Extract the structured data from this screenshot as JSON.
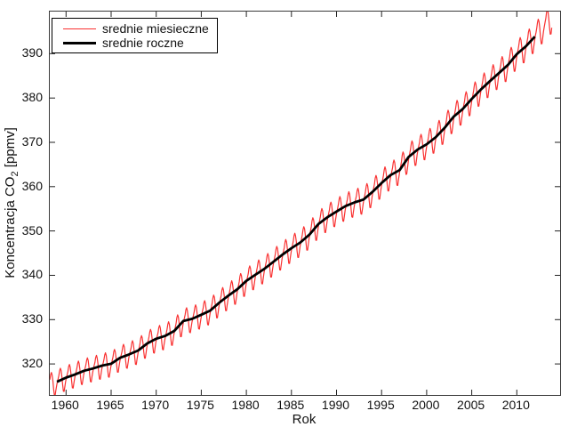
{
  "chart_data": {
    "type": "line",
    "title": "",
    "xlabel": "Rok",
    "ylabel": "Koncentracja CO2 [ppmv]",
    "ylabel_parts": {
      "prefix": "Koncentracja CO",
      "sub": "2",
      "suffix": " [ppmv]"
    },
    "xlim": [
      1958.2,
      2014.8
    ],
    "ylim": [
      313.0,
      399.5
    ],
    "xticks": [
      1960,
      1965,
      1970,
      1975,
      1980,
      1985,
      1990,
      1995,
      2000,
      2005,
      2010
    ],
    "yticks": [
      320,
      330,
      340,
      350,
      360,
      370,
      380,
      390
    ],
    "grid": false,
    "legend_position": "top-left",
    "axis_color": "#3a3a3a",
    "tick_color": "#222222",
    "background": "#ffffff",
    "series": [
      {
        "name": "srednie miesieczne",
        "kind": "monthly-means",
        "color": "#f93131",
        "line_width": 1.2,
        "first_month": [
          1958,
          3
        ],
        "last_month": [
          2013,
          11
        ],
        "seasonal_offsets_ppmv": [
          -0.05,
          0.65,
          1.4,
          2.55,
          3.05,
          2.35,
          0.75,
          -1.45,
          -3.15,
          -3.3,
          -2.1,
          -0.95
        ],
        "amplitude_scale": [
          0.88,
          1.02
        ]
      },
      {
        "name": "srednie roczne",
        "kind": "annual-means",
        "color": "#000000",
        "line_width": 2.8,
        "years": [
          1959,
          1960,
          1961,
          1962,
          1963,
          1964,
          1965,
          1966,
          1967,
          1968,
          1969,
          1970,
          1971,
          1972,
          1973,
          1974,
          1975,
          1976,
          1977,
          1978,
          1979,
          1980,
          1981,
          1982,
          1983,
          1984,
          1985,
          1986,
          1987,
          1988,
          1989,
          1990,
          1991,
          1992,
          1993,
          1994,
          1995,
          1996,
          1997,
          1998,
          1999,
          2000,
          2001,
          2002,
          2003,
          2004,
          2005,
          2006,
          2007,
          2008,
          2009,
          2010,
          2011,
          2012
        ],
        "values_ppmv": [
          315.97,
          316.91,
          317.64,
          318.45,
          318.99,
          319.62,
          320.04,
          321.38,
          322.16,
          323.04,
          324.62,
          325.68,
          326.32,
          327.45,
          329.68,
          330.18,
          331.11,
          332.04,
          333.83,
          335.4,
          336.84,
          338.75,
          340.11,
          341.45,
          343.05,
          344.65,
          346.12,
          347.42,
          349.19,
          351.57,
          353.12,
          354.39,
          355.61,
          356.45,
          357.1,
          358.83,
          360.82,
          362.61,
          363.73,
          366.7,
          368.38,
          369.55,
          371.14,
          373.28,
          375.8,
          377.52,
          379.8,
          381.9,
          383.79,
          385.6,
          387.43,
          389.9,
          391.65,
          393.85
        ]
      }
    ]
  }
}
